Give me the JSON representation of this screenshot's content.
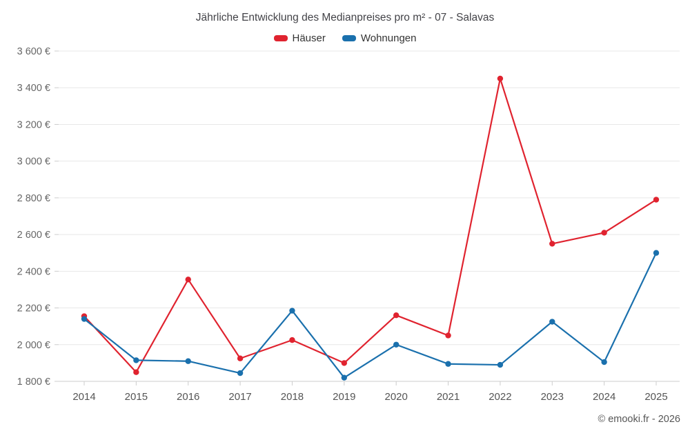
{
  "footer": "© emooki.fr - 2026",
  "chart_data": {
    "type": "line",
    "title": "Jährliche Entwicklung des Medianpreises pro m² - 07 - Salavas",
    "x": [
      2014,
      2015,
      2016,
      2017,
      2018,
      2019,
      2020,
      2021,
      2022,
      2023,
      2024,
      2025
    ],
    "series": [
      {
        "name": "Häuser",
        "color": "#e0232f",
        "values": [
          2155,
          1850,
          2355,
          1925,
          2025,
          1900,
          2160,
          2050,
          3450,
          2550,
          2610,
          2790
        ]
      },
      {
        "name": "Wohnungen",
        "color": "#1a70ad",
        "values": [
          2140,
          1915,
          1910,
          1845,
          2185,
          1820,
          2000,
          1895,
          1890,
          2125,
          1905,
          2500
        ]
      }
    ],
    "ylim": [
      1800,
      3600
    ],
    "yticks": [
      {
        "value": 1800,
        "label": "1 800 €"
      },
      {
        "value": 2000,
        "label": "2 000 €"
      },
      {
        "value": 2200,
        "label": "2 200 €"
      },
      {
        "value": 2400,
        "label": "2 400 €"
      },
      {
        "value": 2600,
        "label": "2 600 €"
      },
      {
        "value": 2800,
        "label": "2 800 €"
      },
      {
        "value": 3000,
        "label": "3 000 €"
      },
      {
        "value": 3200,
        "label": "3 200 €"
      },
      {
        "value": 3400,
        "label": "3 400 €"
      },
      {
        "value": 3600,
        "label": "3 600 €"
      }
    ],
    "grid": true,
    "legend_position": "top",
    "xlabel": "",
    "ylabel": ""
  }
}
